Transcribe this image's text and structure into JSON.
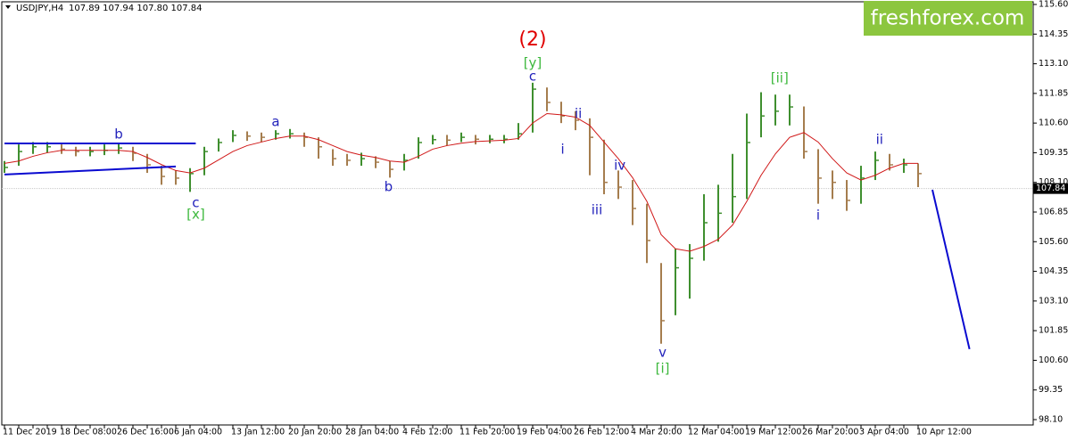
{
  "chart_data": {
    "type": "ohlc",
    "header": {
      "symbol": "USDJPY,H4",
      "prices": "107.89 107.94 107.80 107.84"
    },
    "logo": "freshforex.com",
    "categories": [
      "11 Dec 2019",
      null,
      null,
      null,
      "18 Dec 08:00",
      null,
      null,
      null,
      "26 Dec 16:00",
      null,
      null,
      null,
      "6 Jan 04:00",
      null,
      null,
      null,
      "13 Jan 12:00",
      null,
      null,
      null,
      "20 Jan 20:00",
      null,
      null,
      null,
      "28 Jan 04:00",
      null,
      null,
      null,
      "4 Feb 12:00",
      null,
      null,
      null,
      "11 Feb 20:00",
      null,
      null,
      null,
      "19 Feb 04:00",
      null,
      null,
      null,
      "26 Feb 12:00",
      null,
      null,
      null,
      "4 Mar 20:00",
      null,
      null,
      null,
      "12 Mar 04:00",
      null,
      null,
      null,
      "19 Mar 12:00",
      null,
      null,
      null,
      "26 Mar 20:00",
      null,
      null,
      null,
      "3 Apr 04:00",
      null,
      null,
      null,
      "10 Apr 12:00"
    ],
    "close": [
      108.73,
      109.4,
      109.6,
      109.6,
      109.5,
      109.4,
      109.4,
      109.45,
      109.55,
      109.33,
      108.84,
      108.35,
      108.28,
      108.47,
      109.4,
      109.78,
      110.08,
      110.05,
      110.0,
      110.15,
      110.15,
      110.0,
      109.6,
      109.1,
      109.03,
      109.1,
      108.95,
      108.65,
      109.03,
      109.78,
      109.9,
      109.88,
      110.0,
      109.92,
      109.92,
      109.92,
      110.15,
      112.03,
      111.47,
      110.9,
      110.72,
      110.0,
      108.1,
      107.9,
      107.0,
      105.65,
      102.27,
      104.5,
      104.9,
      106.4,
      106.8,
      107.5,
      109.78,
      110.9,
      111.1,
      111.28,
      109.4,
      108.28,
      108.1,
      107.34,
      108.28,
      109.03,
      108.84,
      108.84,
      108.47
    ],
    "high": [
      109.0,
      109.7,
      109.8,
      109.8,
      109.7,
      109.6,
      109.6,
      109.7,
      109.75,
      109.6,
      109.3,
      108.8,
      108.6,
      108.7,
      109.6,
      109.95,
      110.3,
      110.25,
      110.2,
      110.3,
      110.35,
      110.2,
      110.0,
      109.5,
      109.3,
      109.35,
      109.2,
      109.0,
      109.3,
      110.0,
      110.1,
      110.1,
      110.2,
      110.1,
      110.1,
      110.1,
      110.6,
      112.3,
      112.1,
      111.5,
      111.1,
      110.8,
      109.9,
      108.6,
      108.2,
      107.2,
      104.7,
      105.3,
      105.5,
      107.6,
      108.0,
      109.3,
      111.0,
      111.9,
      111.8,
      111.8,
      111.3,
      109.5,
      108.6,
      108.2,
      108.8,
      109.4,
      109.3,
      109.1,
      108.9
    ],
    "low": [
      108.5,
      108.8,
      109.3,
      109.35,
      109.3,
      109.2,
      109.2,
      109.25,
      109.3,
      109.0,
      108.5,
      108.0,
      108.0,
      107.7,
      108.4,
      109.4,
      109.8,
      109.85,
      109.8,
      109.9,
      109.95,
      109.6,
      109.1,
      108.8,
      108.8,
      108.8,
      108.7,
      108.3,
      108.6,
      109.1,
      109.7,
      109.65,
      109.8,
      109.7,
      109.75,
      109.75,
      109.9,
      110.2,
      111.1,
      110.6,
      110.3,
      108.4,
      107.6,
      107.4,
      106.3,
      104.7,
      101.3,
      102.5,
      103.2,
      104.8,
      105.6,
      106.4,
      107.4,
      110.0,
      110.5,
      110.5,
      109.1,
      107.2,
      107.4,
      106.9,
      107.2,
      108.2,
      108.6,
      108.5,
      107.9
    ],
    "ma": [
      108.9,
      109.0,
      109.2,
      109.35,
      109.45,
      109.45,
      109.45,
      109.45,
      109.45,
      109.4,
      109.15,
      108.85,
      108.6,
      108.5,
      108.7,
      109.05,
      109.4,
      109.65,
      109.8,
      109.95,
      110.05,
      110.05,
      109.9,
      109.65,
      109.4,
      109.25,
      109.15,
      109.0,
      108.95,
      109.2,
      109.5,
      109.65,
      109.75,
      109.82,
      109.85,
      109.88,
      109.95,
      110.6,
      111.0,
      110.95,
      110.85,
      110.5,
      109.8,
      109.1,
      108.3,
      107.3,
      105.9,
      105.3,
      105.2,
      105.4,
      105.7,
      106.3,
      107.3,
      108.4,
      109.3,
      110.0,
      110.2,
      109.8,
      109.1,
      108.5,
      108.2,
      108.4,
      108.7,
      108.9,
      108.9
    ],
    "up_color": "#3f8f2f",
    "down_color": "#a57d4e",
    "ma_color": "#d01818",
    "current_price": 107.84,
    "ylim": [
      98.1,
      115.6
    ],
    "yticks": [
      {
        "value": 115.6,
        "label": "115.60"
      },
      114.35,
      {
        "value": 113.1,
        "label": "113.10"
      },
      111.85,
      {
        "value": 110.6,
        "label": "110.60"
      },
      109.35,
      {
        "value": 108.1,
        "label": "108.10"
      },
      106.85,
      {
        "value": 105.6,
        "label": "105.60"
      },
      104.35,
      {
        "value": 103.1,
        "label": "103.10"
      },
      101.85,
      {
        "value": 100.6,
        "label": "100.60"
      },
      99.35,
      {
        "value": 98.1,
        "label": "98.10"
      }
    ],
    "lines": [
      {
        "from": [
          0,
          109.74
        ],
        "to": [
          13.4,
          109.74
        ],
        "color": "#0a0ad0"
      },
      {
        "from": [
          0,
          108.43
        ],
        "to": [
          12,
          108.77
        ],
        "color": "#0a0ad0"
      },
      {
        "from": [
          65,
          107.79
        ],
        "to": [
          67.6,
          101.07
        ],
        "color": "#0a0ad0"
      }
    ],
    "annotations": [
      {
        "text": "(2)",
        "at": 37,
        "price": 114.1,
        "color": "#e00000"
      },
      {
        "text": "[y]",
        "at": 37,
        "price": 113.12,
        "color": "#3cb83c"
      },
      {
        "text": "c",
        "at": 37,
        "price": 112.55,
        "color": "#2222bb"
      },
      {
        "text": "b",
        "at": 8,
        "price": 110.12,
        "color": "#2222bb"
      },
      {
        "text": "a",
        "at": 19,
        "price": 110.64,
        "color": "#2222bb"
      },
      {
        "text": "c",
        "at": 13.4,
        "price": 107.23,
        "color": "#2222bb"
      },
      {
        "text": "[x]",
        "at": 13.4,
        "price": 106.74,
        "color": "#3cb83c"
      },
      {
        "text": "b",
        "at": 26.9,
        "price": 107.9,
        "color": "#2222bb"
      },
      {
        "text": "ii",
        "at": 40.2,
        "price": 110.98,
        "color": "#2222bb"
      },
      {
        "text": "i",
        "at": 39.1,
        "price": 109.48,
        "color": "#2222bb"
      },
      {
        "text": "iv",
        "at": 43.1,
        "price": 108.8,
        "color": "#2222bb"
      },
      {
        "text": "iii",
        "at": 41.5,
        "price": 106.93,
        "color": "#2222bb"
      },
      {
        "text": "v",
        "at": 46.1,
        "price": 100.92,
        "color": "#2222bb"
      },
      {
        "text": "[i]",
        "at": 46.1,
        "price": 100.24,
        "color": "#3cb83c"
      },
      {
        "text": "[ii]",
        "at": 54.3,
        "price": 112.48,
        "color": "#3cb83c"
      },
      {
        "text": "i",
        "at": 57,
        "price": 106.7,
        "color": "#2222bb"
      },
      {
        "text": "ii",
        "at": 61.3,
        "price": 109.89,
        "color": "#2222bb"
      }
    ]
  }
}
